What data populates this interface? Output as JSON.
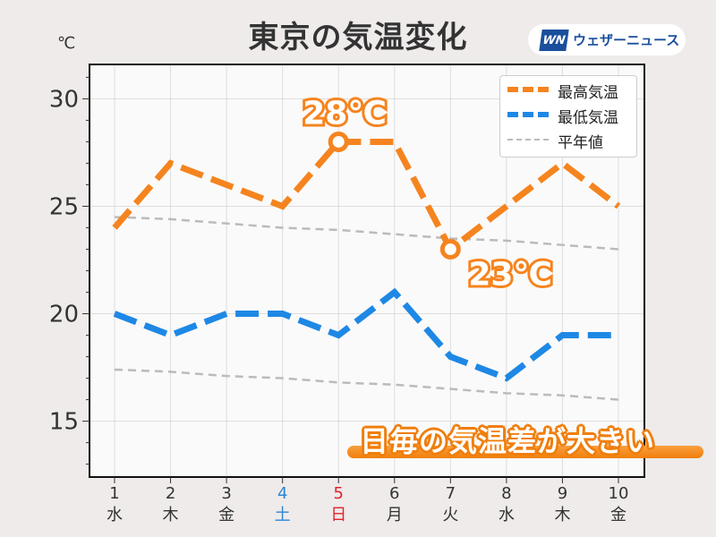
{
  "chart_data": {
    "type": "line",
    "title": "東京の気温変化",
    "ylabel": "℃",
    "ylim": [
      12.4,
      31.6
    ],
    "yticks": [
      15,
      20,
      25,
      30
    ],
    "categories": [
      "1",
      "2",
      "3",
      "4",
      "5",
      "6",
      "7",
      "8",
      "9",
      "10"
    ],
    "weekdays": [
      "水",
      "木",
      "金",
      "土",
      "日",
      "月",
      "火",
      "水",
      "木",
      "金"
    ],
    "weekday_colors": [
      "#333333",
      "#333333",
      "#333333",
      "#2a86d6",
      "#e0212b",
      "#333333",
      "#333333",
      "#333333",
      "#333333",
      "#333333"
    ],
    "series": [
      {
        "name": "最高気温",
        "color": "#f5841f",
        "style": "dashed-thick",
        "values": [
          24,
          27,
          26,
          25,
          28,
          28,
          23,
          25,
          27,
          25
        ]
      },
      {
        "name": "最低気温",
        "color": "#1e88e5",
        "style": "dashed-thick",
        "values": [
          20,
          19,
          20,
          20,
          19,
          21,
          18,
          17,
          19,
          19
        ]
      },
      {
        "name": "平年値",
        "color": "#bbbbbb",
        "style": "dashed-thin",
        "values": [
          24.5,
          24.4,
          24.2,
          24.0,
          23.9,
          23.7,
          23.5,
          23.4,
          23.2,
          23.0
        ]
      },
      {
        "name": "平年値",
        "color": "#bbbbbb",
        "style": "dashed-thin",
        "hide_legend": true,
        "values": [
          17.4,
          17.3,
          17.1,
          17.0,
          16.8,
          16.7,
          16.5,
          16.3,
          16.2,
          16.0
        ]
      }
    ],
    "annotations": [
      {
        "index": 4,
        "series": 0,
        "text": "28℃",
        "position": "above"
      },
      {
        "index": 6,
        "series": 0,
        "text": "23℃",
        "position": "below-right"
      }
    ],
    "grid": true,
    "legend": "top-right"
  },
  "logo": {
    "mark": "WN",
    "text": "ウェザーニュース"
  },
  "banner": "日毎の気温差が大きい"
}
